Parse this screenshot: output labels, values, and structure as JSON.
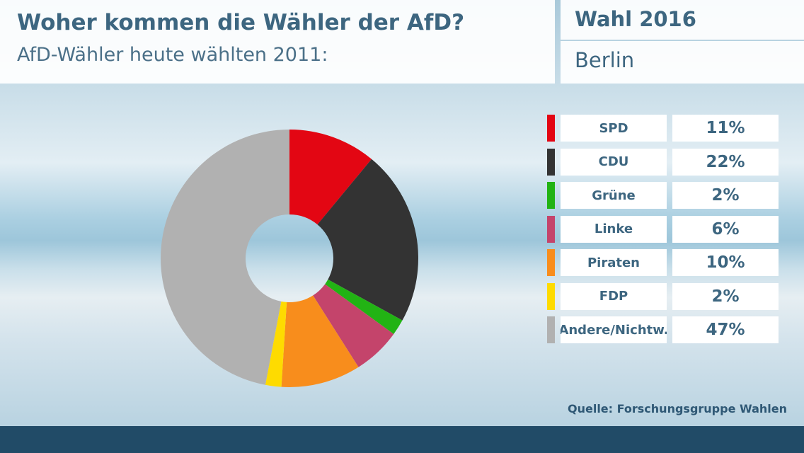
{
  "header": {
    "title": "Woher kommen die Wähler der AfD?",
    "subtitle": "AfD-Wähler heute wählten 2011:",
    "election": "Wahl 2016",
    "region": "Berlin"
  },
  "source": "Quelle: Forschungsgruppe Wahlen",
  "chart_data": {
    "type": "pie",
    "variant": "donut",
    "title": "AfD-Wähler heute wählten 2011:",
    "categories": [
      "SPD",
      "CDU",
      "Grüne",
      "Linke",
      "Piraten",
      "FDP",
      "Andere/Nichtw."
    ],
    "values": [
      11,
      22,
      2,
      6,
      10,
      2,
      47
    ],
    "labels": [
      "11%",
      "22%",
      "2%",
      "6%",
      "10%",
      "2%",
      "47%"
    ],
    "colors": [
      "#e30613",
      "#333333",
      "#22b314",
      "#c4446b",
      "#f88d1c",
      "#fedb00",
      "#b1b1b1"
    ],
    "unit": "%",
    "legend": "right"
  }
}
